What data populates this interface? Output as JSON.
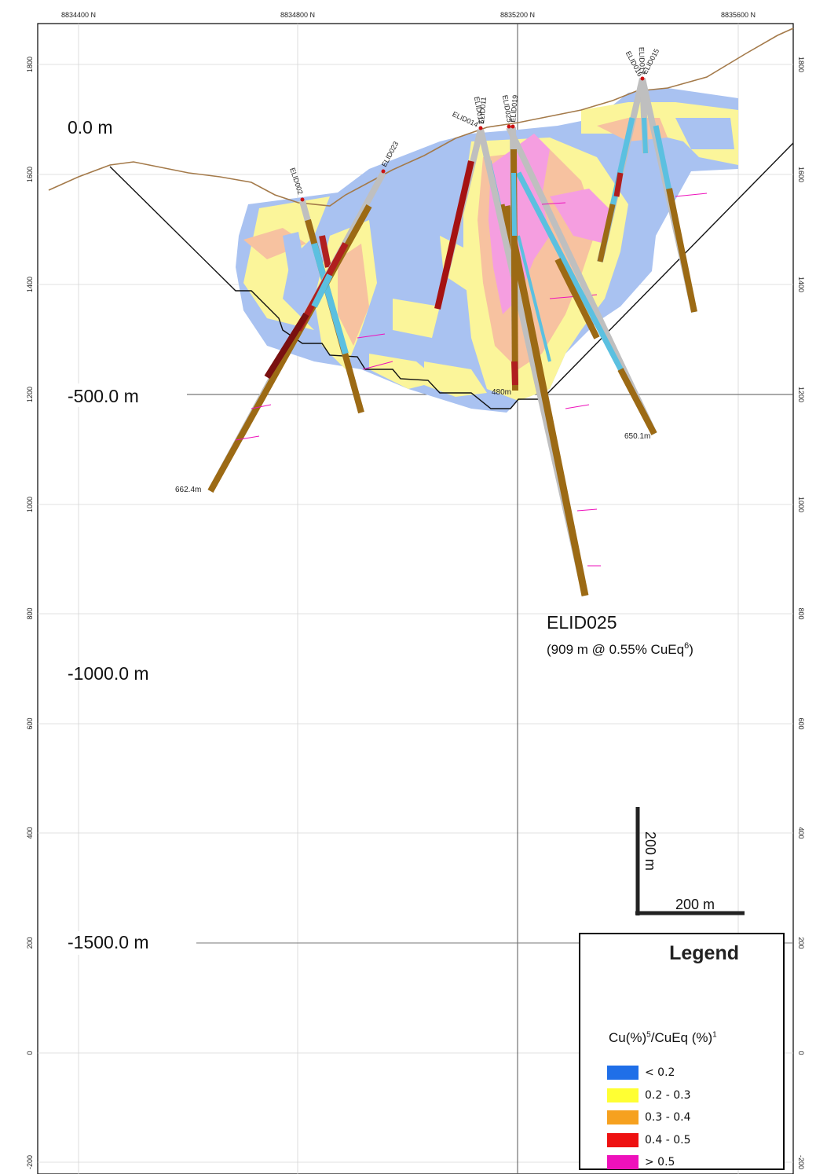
{
  "axes": {
    "top_labels": [
      "8834400 N",
      "8834800 N",
      "8835200 N",
      "8835600 N"
    ],
    "elev_labels": [
      "1800",
      "1600",
      "1400",
      "1200",
      "1000",
      "800",
      "600",
      "400",
      "200",
      "0",
      "-200"
    ]
  },
  "levels": [
    "0.0 m",
    "-500.0 m",
    "-1000.0 m",
    "-1500.0 m"
  ],
  "holes": [
    {
      "name": "ELID002",
      "end_label": "662.4m"
    },
    {
      "name": "ELID023",
      "end_label": ""
    },
    {
      "name": "ELID014",
      "end_label": ""
    },
    {
      "name": "ELID012",
      "end_label": ""
    },
    {
      "name": "ELID011",
      "end_label": ""
    },
    {
      "name": "ELID025",
      "end_label": ""
    },
    {
      "name": "ELID019",
      "end_label": "480m"
    },
    {
      "name": "ELID016",
      "end_label": ""
    },
    {
      "name": "ELID017",
      "end_label": ""
    },
    {
      "name": "ELID015",
      "end_label": "650.1m"
    }
  ],
  "callout": {
    "title": "ELID025",
    "detail_main": "(909 m @ 0.55% CuEq",
    "detail_sup": "6",
    "detail_end": ")"
  },
  "scale_bar": {
    "vertical": "200 m",
    "horizontal": "200 m"
  },
  "legend": {
    "title": "Legend",
    "heading_a": "Cu(%)",
    "heading_a_sup": "5",
    "heading_b": "/CuEq (%)",
    "heading_b_sup": "1",
    "items": [
      {
        "label": "< 0.2",
        "color": "#1f6fe8"
      },
      {
        "label": "0.2 - 0.3",
        "color": "#ffff33"
      },
      {
        "label": "0.3 - 0.4",
        "color": "#f6a11f"
      },
      {
        "label": "0.4 - 0.5",
        "color": "#ee1111"
      },
      {
        "label": "> 0.5",
        "color": "#ee11bb"
      }
    ]
  },
  "colors": {
    "block_low": "#a8c1f0",
    "block_mid": "#fbf59a",
    "block_high": "#f7c2a0",
    "block_top": "#f59ee0",
    "topography": "#a47a4a",
    "pit_shell": "#111111",
    "hole_core": "#9c6a14"
  }
}
